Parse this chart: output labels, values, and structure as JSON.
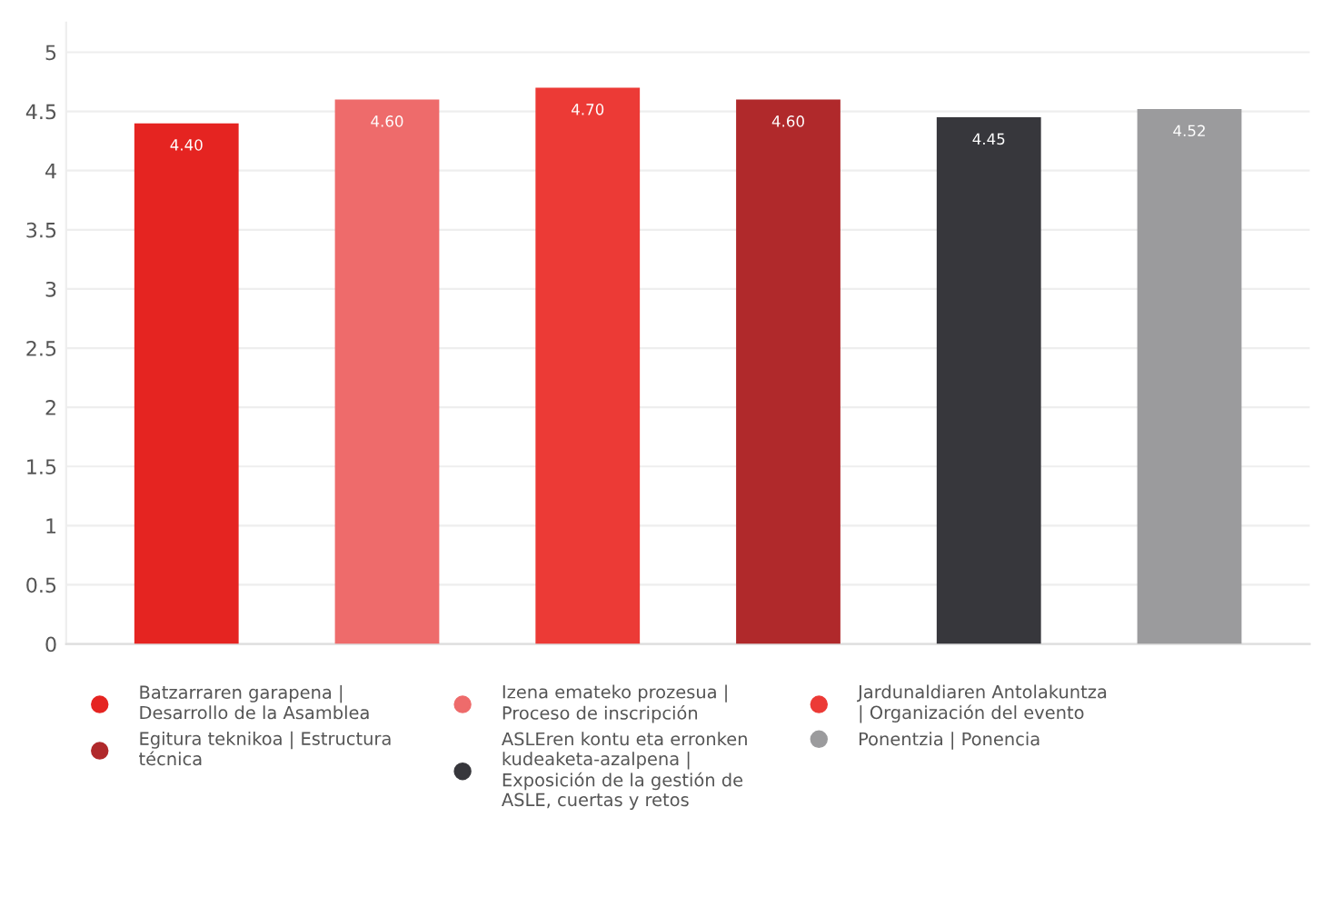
{
  "chart_data": {
    "type": "bar",
    "categories": [
      null,
      null,
      null,
      null,
      null,
      null
    ],
    "series": [
      {
        "name": "Batzarraren garapena |\nDesarrollo de la Asamblea",
        "color": "#e52421",
        "values": [
          4.4,
          null,
          null,
          null,
          null,
          null
        ],
        "value_labels": [
          "4.40",
          null,
          null,
          null,
          null,
          null
        ]
      },
      {
        "name": "Izena emateko prozesua |\nProceso de inscripción",
        "color": "#ee6b6b",
        "values": [
          null,
          4.6,
          null,
          null,
          null,
          null
        ],
        "value_labels": [
          null,
          "4.60",
          null,
          null,
          null,
          null
        ]
      },
      {
        "name": "Jardunaldiaren Antolakuntza\n| Organización del evento",
        "color": "#ec3a36",
        "values": [
          null,
          null,
          4.7,
          null,
          null,
          null
        ],
        "value_labels": [
          null,
          null,
          "4.70",
          null,
          null,
          null
        ]
      },
      {
        "name": "Egitura teknikoa | Estructura\ntécnica",
        "color": "#b0292b",
        "values": [
          null,
          null,
          null,
          4.6,
          null,
          null
        ],
        "value_labels": [
          null,
          null,
          null,
          "4.60",
          null,
          null
        ]
      },
      {
        "name": "ASLEren kontu eta erronken\nkudeaketa-azalpena |\nExposición de la gestión de\nASLE, cuertas y retos",
        "color": "#37373c",
        "values": [
          null,
          null,
          null,
          null,
          4.45,
          null
        ],
        "value_labels": [
          null,
          null,
          null,
          null,
          "4.45",
          null
        ]
      },
      {
        "name": "Ponentzia | Ponencia",
        "color": "#9b9b9d",
        "values": [
          null,
          null,
          null,
          null,
          null,
          4.52
        ],
        "value_labels": [
          null,
          null,
          null,
          null,
          null,
          "4.52"
        ]
      }
    ],
    "ylim": [
      0,
      5.25
    ],
    "yticks": [
      0,
      0.5,
      1,
      1.5,
      2,
      2.5,
      3,
      3.5,
      4,
      4.5,
      5
    ],
    "grid": "y",
    "legend": "bottom",
    "tick_labels": "y"
  }
}
